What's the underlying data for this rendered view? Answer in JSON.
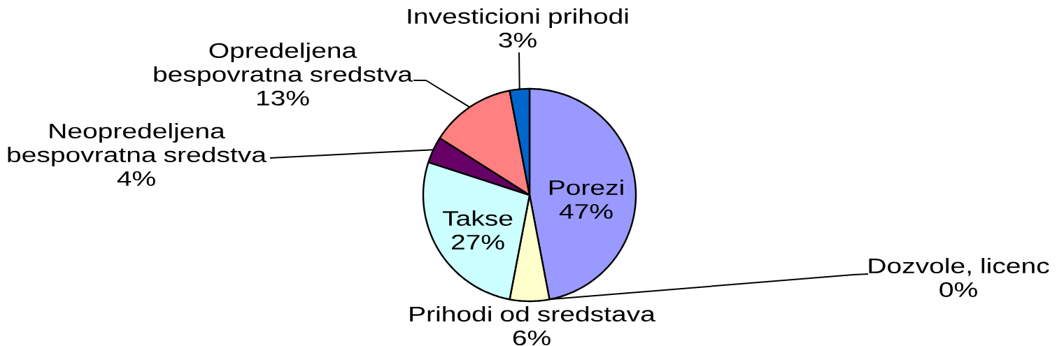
{
  "chart_data": {
    "type": "pie",
    "categories": [
      "Porezi",
      "Dozvole, licenc",
      "Prihodi od sredstava",
      "Takse",
      "Neopredeljena bespovratna sredstva",
      "Opredeljena bespovratna sredstva",
      "Investicioni prihodi"
    ],
    "values": [
      47,
      0,
      6,
      27,
      4,
      13,
      3
    ],
    "colors": [
      "#9999ff",
      null,
      "#ffffcc",
      "#ccffff",
      "#660066",
      "#ff8080",
      "#0066cc"
    ],
    "value_labels": [
      "47%",
      "0%",
      "6%",
      "27%",
      "4%",
      "13%",
      "3%"
    ]
  }
}
